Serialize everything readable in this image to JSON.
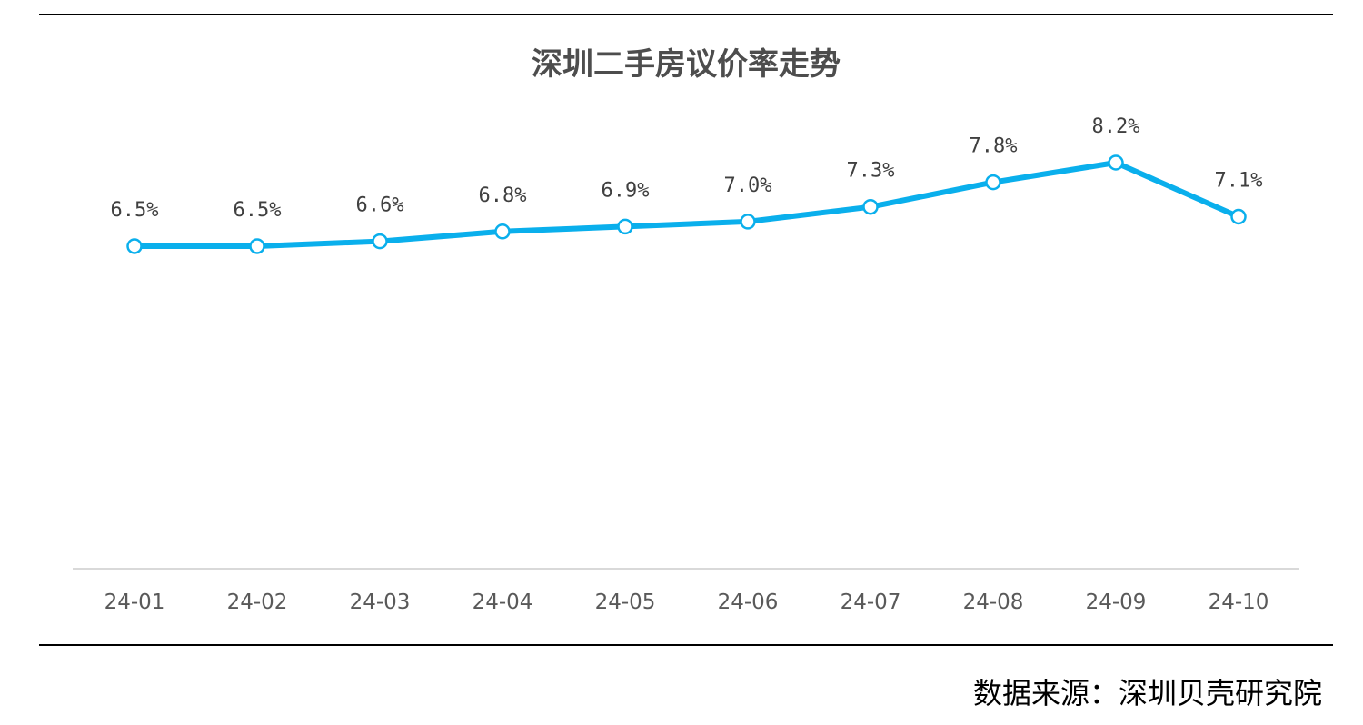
{
  "chart_data": {
    "type": "line",
    "title": "深圳二手房议价率走势",
    "categories": [
      "24-01",
      "24-02",
      "24-03",
      "24-04",
      "24-05",
      "24-06",
      "24-07",
      "24-08",
      "24-09",
      "24-10"
    ],
    "series": [
      {
        "values": [
          6.5,
          6.5,
          6.6,
          6.8,
          6.9,
          7.0,
          7.3,
          7.8,
          8.2,
          7.1
        ],
        "labels": [
          "6.5%",
          "6.5%",
          "6.6%",
          "6.8%",
          "6.9%",
          "7.0%",
          "7.3%",
          "7.8%",
          "8.2%",
          "7.1%"
        ],
        "color": "#0AAFEC"
      }
    ],
    "grid": false,
    "legend": "none"
  },
  "footer": {
    "source": "数据来源：深圳贝壳研究院"
  }
}
